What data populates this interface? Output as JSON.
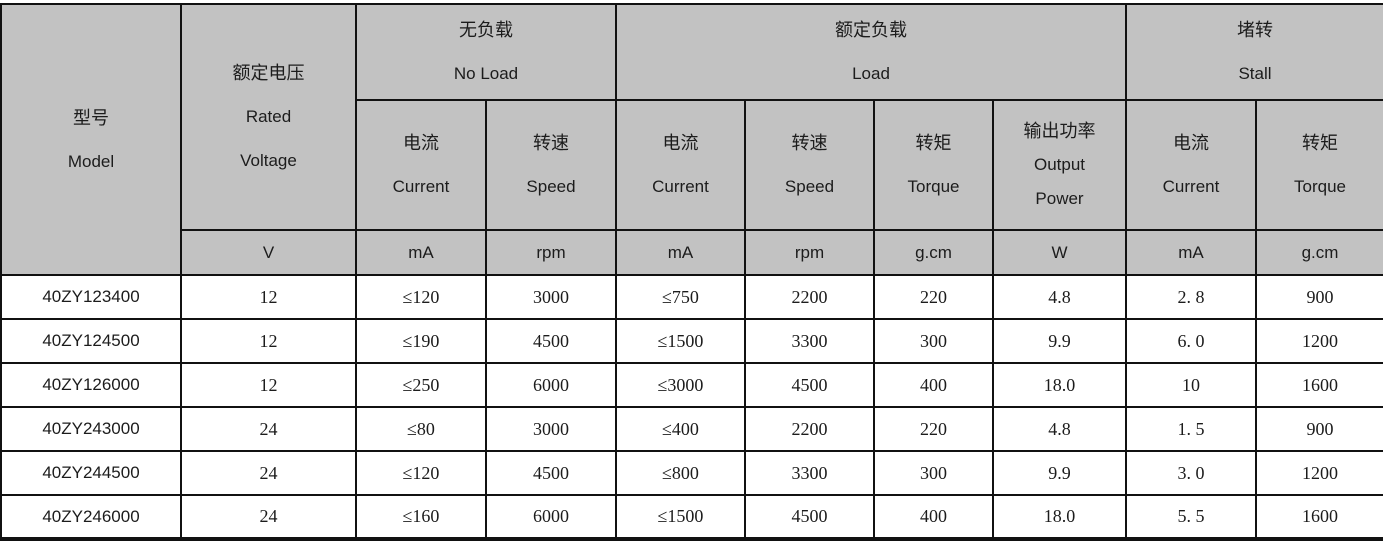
{
  "table": {
    "model_header": {
      "zh": "型号",
      "en": "Model"
    },
    "voltage_header": {
      "zh": "额定电压",
      "en_line1": "Rated",
      "en_line2": "Voltage",
      "unit": "V"
    },
    "groups": [
      {
        "zh": "无负载",
        "en": "No Load"
      },
      {
        "zh": "额定负载",
        "en": "Load"
      },
      {
        "zh": "堵转",
        "en": "Stall"
      }
    ],
    "columns": [
      {
        "zh": "电流",
        "en": "Current",
        "unit": "mA"
      },
      {
        "zh": "转速",
        "en": "Speed",
        "unit": "rpm"
      },
      {
        "zh": "电流",
        "en": "Current",
        "unit": "mA"
      },
      {
        "zh": "转速",
        "en": "Speed",
        "unit": "rpm"
      },
      {
        "zh": "转矩",
        "en": "Torque",
        "unit": "g.cm"
      },
      {
        "zh": "输出功率",
        "en": "Output Power",
        "unit": "W"
      },
      {
        "zh": "电流",
        "en": "Current",
        "unit": "mA"
      },
      {
        "zh": "转矩",
        "en": "Torque",
        "unit": "g.cm"
      }
    ],
    "rows": [
      {
        "model": "40ZY123400",
        "values": [
          "12",
          "≤120",
          "3000",
          "≤750",
          "2200",
          "220",
          "4.8",
          "2. 8",
          "900"
        ]
      },
      {
        "model": "40ZY124500",
        "values": [
          "12",
          "≤190",
          "4500",
          "≤1500",
          "3300",
          "300",
          "9.9",
          "6. 0",
          "1200"
        ]
      },
      {
        "model": "40ZY126000",
        "values": [
          "12",
          "≤250",
          "6000",
          "≤3000",
          "4500",
          "400",
          "18.0",
          "10",
          "1600"
        ]
      },
      {
        "model": "40ZY243000",
        "values": [
          "24",
          "≤80",
          "3000",
          "≤400",
          "2200",
          "220",
          "4.8",
          "1. 5",
          "900"
        ]
      },
      {
        "model": "40ZY244500",
        "values": [
          "24",
          "≤120",
          "4500",
          "≤800",
          "3300",
          "300",
          "9.9",
          "3. 0",
          "1200"
        ]
      },
      {
        "model": "40ZY246000",
        "values": [
          "24",
          "≤160",
          "6000",
          "≤1500",
          "4500",
          "400",
          "18.0",
          "5. 5",
          "1600"
        ]
      }
    ],
    "colors": {
      "header_bg": "#c2c2c2",
      "border": "#111111",
      "text": "#1c1c1c"
    }
  }
}
